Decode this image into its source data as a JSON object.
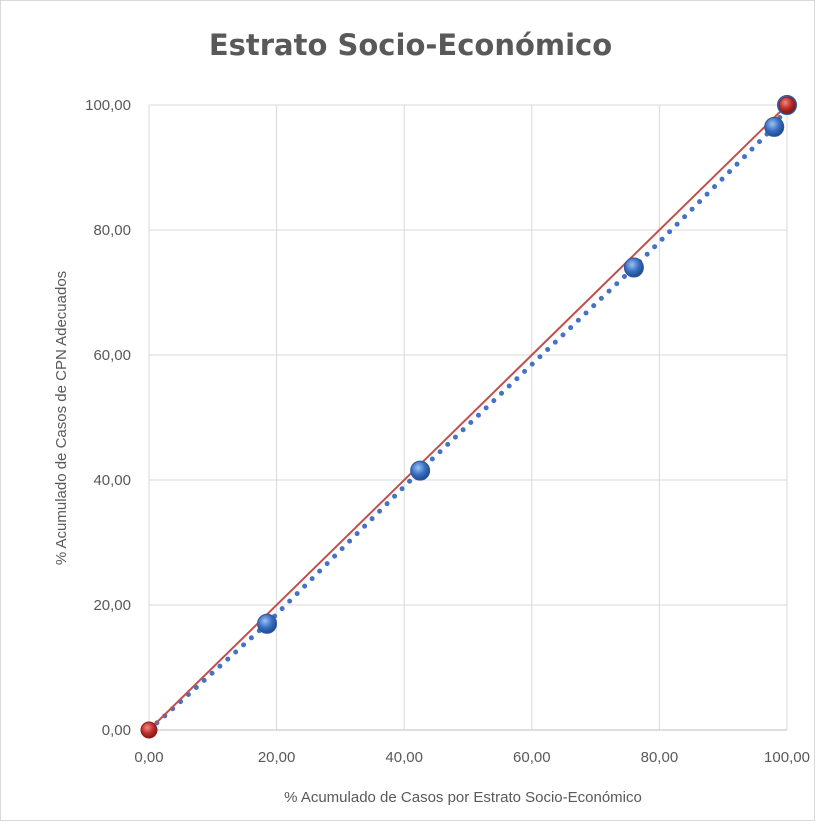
{
  "chart_data": {
    "type": "scatter",
    "title": "Estrato Socio-Económico",
    "xlabel": "% Acumulado de Casos por Estrato Socio-Económico",
    "ylabel": "% Acumulado de Casos de CPN Adecuados",
    "xlim": [
      0,
      100
    ],
    "ylim": [
      0,
      100
    ],
    "x_ticks": [
      "0,00",
      "20,00",
      "40,00",
      "60,00",
      "80,00",
      "100,00"
    ],
    "y_ticks": [
      "0,00",
      "20,00",
      "40,00",
      "60,00",
      "80,00",
      "100,00"
    ],
    "grid": true,
    "series": [
      {
        "style": "dotted-line-with-markers",
        "color": "#4472c4",
        "x": [
          0,
          18.5,
          42.5,
          76.0,
          98.0,
          100.0
        ],
        "y": [
          0,
          17.0,
          41.5,
          74.0,
          96.5,
          100.0
        ]
      },
      {
        "style": "solid-line-with-markers",
        "color": "#c0504d",
        "x": [
          0,
          100
        ],
        "y": [
          0,
          100
        ]
      }
    ]
  }
}
